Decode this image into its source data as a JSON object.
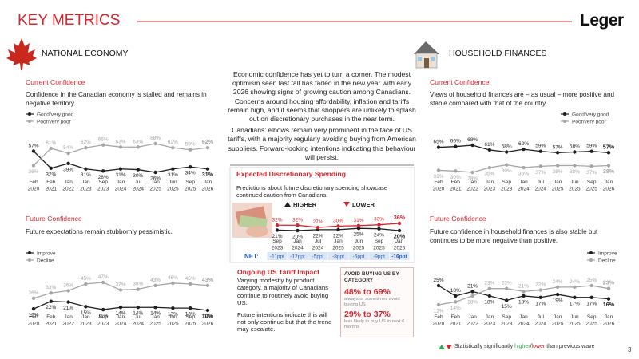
{
  "header": {
    "title": "KEY METRICS",
    "logo": "Leger"
  },
  "sections": {
    "left": "NATIONAL ECONOMY",
    "right": "HOUSEHOLD FINANCES"
  },
  "summary": [
    "Economic confidence has yet to turn a corner. The modest optimism seen last fall has faded in the new year with early 2026 showing signs of growing caution among Canadians. Concerns around housing affordability, inflation and tariffs remain high, and it seems that shoppers are unlikely to splash out on discretionary purchases in the near term.",
    "Canadians’ elbows remain very prominent in the face of US tariffs, with a majority regularly avoiding buying from American suppliers. Forward-looking intentions indicating this behaviour will persist."
  ],
  "chart_data": [
    {
      "type": "line",
      "title": "Current Confidence",
      "subtitle": "Confidence in the Canadian economy is stalled and remains in negative territory.",
      "categories": [
        [
          "Feb",
          "2020"
        ],
        [
          "Feb",
          "2021"
        ],
        [
          "Jan",
          "2022"
        ],
        [
          "Jan",
          "2023"
        ],
        [
          "Sep",
          "2023"
        ],
        [
          "Jan",
          "2024"
        ],
        [
          "Jul",
          "2024"
        ],
        [
          "Jan",
          "2025"
        ],
        [
          "Jun",
          "2025"
        ],
        [
          "Sep",
          "2025"
        ],
        [
          "Jan",
          "2026"
        ]
      ],
      "series": [
        {
          "name": "Good/very good",
          "color": "#1f1f1f",
          "values": [
            57,
            32,
            39,
            31,
            28,
            31,
            30,
            26,
            31,
            34,
            31
          ],
          "value_labels": [
            "57%",
            "32%",
            "39%",
            "31%",
            "28%",
            "31%",
            "30%",
            "26%",
            "31%",
            "34%",
            "31%"
          ]
        },
        {
          "name": "Poor/very poor",
          "color": "#a6a6a6",
          "values": [
            36,
            61,
            54,
            62,
            66,
            63,
            63,
            68,
            62,
            59,
            62
          ],
          "value_labels": [
            "36%",
            "61%",
            "54%",
            "62%",
            "66%",
            "63%",
            "63%",
            "68%",
            "62%",
            "59%",
            "62%"
          ]
        }
      ]
    },
    {
      "type": "line",
      "title": "Future Confidence",
      "subtitle": "Future expectations remain stubbornly pessimistic.",
      "categories": [
        [
          "Feb",
          "2020"
        ],
        [
          "Feb",
          "2021"
        ],
        [
          "Jan",
          "2022"
        ],
        [
          "Jan",
          "2023"
        ],
        [
          "Sep",
          "2023"
        ],
        [
          "Jan",
          "2024"
        ],
        [
          "Jul",
          "2024"
        ],
        [
          "Jan",
          "2025"
        ],
        [
          "Jun",
          "2025"
        ],
        [
          "Sep",
          "2025"
        ],
        [
          "Jan",
          "2026"
        ]
      ],
      "series": [
        {
          "name": "Improve",
          "color": "#1f1f1f",
          "values": [
            12,
            22,
            21,
            15,
            11,
            14,
            14,
            14,
            13,
            13,
            10
          ],
          "value_labels": [
            "12%",
            "22%",
            "21%",
            "15%",
            "11%",
            "14%",
            "14%",
            "14%",
            "13%",
            "13%",
            "10%"
          ]
        },
        {
          "name": "Decline",
          "color": "#a6a6a6",
          "values": [
            26,
            33,
            36,
            45,
            47,
            37,
            38,
            43,
            46,
            45,
            43
          ],
          "value_labels": [
            "26%",
            "33%",
            "36%",
            "45%",
            "47%",
            "37%",
            "38%",
            "43%",
            "46%",
            "45%",
            "43%"
          ]
        }
      ]
    },
    {
      "type": "line",
      "title": "Current Confidence",
      "subtitle": "Views of household finances are – as usual – more positive and stable compared with that of the country.",
      "categories": [
        [
          "Feb",
          "2020"
        ],
        [
          "Feb",
          "2021"
        ],
        [
          "Jan",
          "2022"
        ],
        [
          "Jan",
          "2023"
        ],
        [
          "Sep",
          "2023"
        ],
        [
          "Jan",
          "2024"
        ],
        [
          "Jul",
          "2024"
        ],
        [
          "Jan",
          "2025"
        ],
        [
          "Jun",
          "2025"
        ],
        [
          "Sep",
          "2025"
        ],
        [
          "Jan",
          "2026"
        ]
      ],
      "series": [
        {
          "name": "Good/very good",
          "color": "#1f1f1f",
          "values": [
            65,
            66,
            68,
            61,
            58,
            62,
            59,
            57,
            58,
            59,
            57
          ],
          "value_labels": [
            "65%",
            "66%",
            "68%",
            "61%",
            "58%",
            "62%",
            "59%",
            "57%",
            "58%",
            "59%",
            "57%"
          ]
        },
        {
          "name": "Poor/very poor",
          "color": "#a6a6a6",
          "values": [
            31,
            30,
            28,
            35,
            39,
            35,
            37,
            38,
            38,
            37,
            38
          ],
          "value_labels": [
            "31%",
            "30%",
            "28%",
            "35%",
            "39%",
            "35%",
            "37%",
            "38%",
            "38%",
            "37%",
            "38%"
          ]
        }
      ]
    },
    {
      "type": "line",
      "title": "Future Confidence",
      "subtitle": "Future confidence in household finances is also stable but continues to be more negative than positive.",
      "categories": [
        [
          "Feb",
          "2020"
        ],
        [
          "Feb",
          "2021"
        ],
        [
          "Jan",
          "2022"
        ],
        [
          "Jan",
          "2023"
        ],
        [
          "Sep",
          "2023"
        ],
        [
          "Jan",
          "2024"
        ],
        [
          "Jul",
          "2024"
        ],
        [
          "Jan",
          "2025"
        ],
        [
          "Jun",
          "2025"
        ],
        [
          "Sep",
          "2025"
        ],
        [
          "Jan",
          "2026"
        ]
      ],
      "series": [
        {
          "name": "Improve",
          "color": "#1f1f1f",
          "values": [
            25,
            18,
            21,
            18,
            15,
            18,
            17,
            19,
            17,
            17,
            16
          ],
          "value_labels": [
            "25%",
            "18%",
            "21%",
            "18%",
            "15%",
            "18%",
            "17%",
            "19%",
            "17%",
            "17%",
            "16%"
          ]
        },
        {
          "name": "Decline",
          "color": "#a6a6a6",
          "values": [
            12,
            14,
            18,
            23,
            23,
            21,
            22,
            24,
            24,
            25,
            23
          ],
          "value_labels": [
            "12%",
            "14%",
            "18%",
            "23%",
            "23%",
            "21%",
            "22%",
            "24%",
            "24%",
            "25%",
            "23%"
          ]
        }
      ]
    },
    {
      "type": "line",
      "title": "Expected Discretionary Spending",
      "subtitle": "Predictions about future discretionary spending showcase continued caution from Canadians.",
      "categories": [
        [
          "Sep",
          "2023"
        ],
        [
          "Jan",
          "2024"
        ],
        [
          "Jul",
          "2024"
        ],
        [
          "Jan",
          "2025"
        ],
        [
          "Jun",
          "2025"
        ],
        [
          "Sep",
          "2025"
        ],
        [
          "Jan",
          "2026"
        ]
      ],
      "series": [
        {
          "name": "HIGHER",
          "color": "#1f1f1f",
          "values": [
            21,
            20,
            22,
            22,
            25,
            24,
            20
          ],
          "value_labels": [
            "21%",
            "20%",
            "22%",
            "22%",
            "25%",
            "24%",
            "20%"
          ]
        },
        {
          "name": "LOWER",
          "color": "#d6262d",
          "values": [
            32,
            32,
            27,
            30,
            31,
            33,
            36
          ],
          "value_labels": [
            "32%",
            "32%",
            "27%",
            "30%",
            "31%",
            "33%",
            "36%"
          ]
        }
      ],
      "net": {
        "label": "NET:",
        "values": [
          -11,
          -12,
          -5,
          -8,
          -6,
          -9,
          -16
        ],
        "value_labels": [
          "-11ppt",
          "-12ppt",
          "-5ppt",
          "-8ppt",
          "-6ppt",
          "-9ppt",
          "-16ppt"
        ]
      }
    }
  ],
  "tariff": {
    "title": "Ongoing US Tariff Impact",
    "paragraphs": [
      "Varying modestly by product category, a majority of Canadians continue to routinely avoid buying US.",
      "Future intentions indicate this will not only continue but that the trend may escalate."
    ],
    "box": {
      "heading": "AVOID BUYING US BY CATEGORY",
      "stats": [
        {
          "range": "48% to 69%",
          "note": "always or sometimes avoid buying US"
        },
        {
          "range": "29% to 37%",
          "note": "less likely to buy US in next 6 months"
        }
      ]
    }
  },
  "footnote": {
    "prefix": "Statistically significantly",
    "higher": "higher",
    "separator": "/",
    "lower": "lower",
    "suffix": "than previous wave"
  },
  "page_number": 3
}
